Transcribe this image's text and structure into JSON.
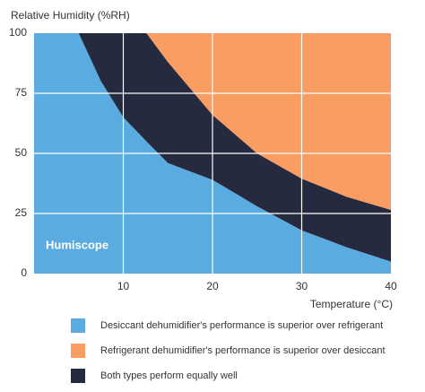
{
  "chart_data": {
    "type": "stacked_area",
    "y_label": "Relative Humidity (%RH)",
    "x_label": "Temperature (°C)",
    "watermark": "Humiscope",
    "x": [
      0,
      5,
      7.5,
      10,
      12.6,
      15,
      20,
      25,
      30,
      35,
      40
    ],
    "series": [
      {
        "name": "Desiccant dehumidifier's performance is superior over refrigerant",
        "color": "#5aabdf",
        "values": [
          100,
          100,
          80,
          65,
          55,
          46,
          39,
          28,
          18,
          11,
          5
        ]
      },
      {
        "name": "Refrigerant dehumidifier's performance is superior over desiccant",
        "color": "#f99d62",
        "values": [
          0,
          0,
          0,
          0,
          0,
          12,
          34,
          50,
          60.5,
          68,
          73.5
        ]
      },
      {
        "name": "Both types perform equally well",
        "color": "#262a3e",
        "values": [
          0,
          0,
          20,
          35,
          45,
          42,
          27,
          22,
          21.5,
          21,
          21.5
        ]
      }
    ],
    "stack_order": [
      0,
      2,
      1
    ],
    "xlim": [
      0,
      40
    ],
    "xticks": [
      10,
      20,
      30,
      40
    ],
    "ylim": [
      0,
      100
    ],
    "yticks": [
      0,
      25,
      50,
      75,
      100
    ],
    "grid": true
  }
}
